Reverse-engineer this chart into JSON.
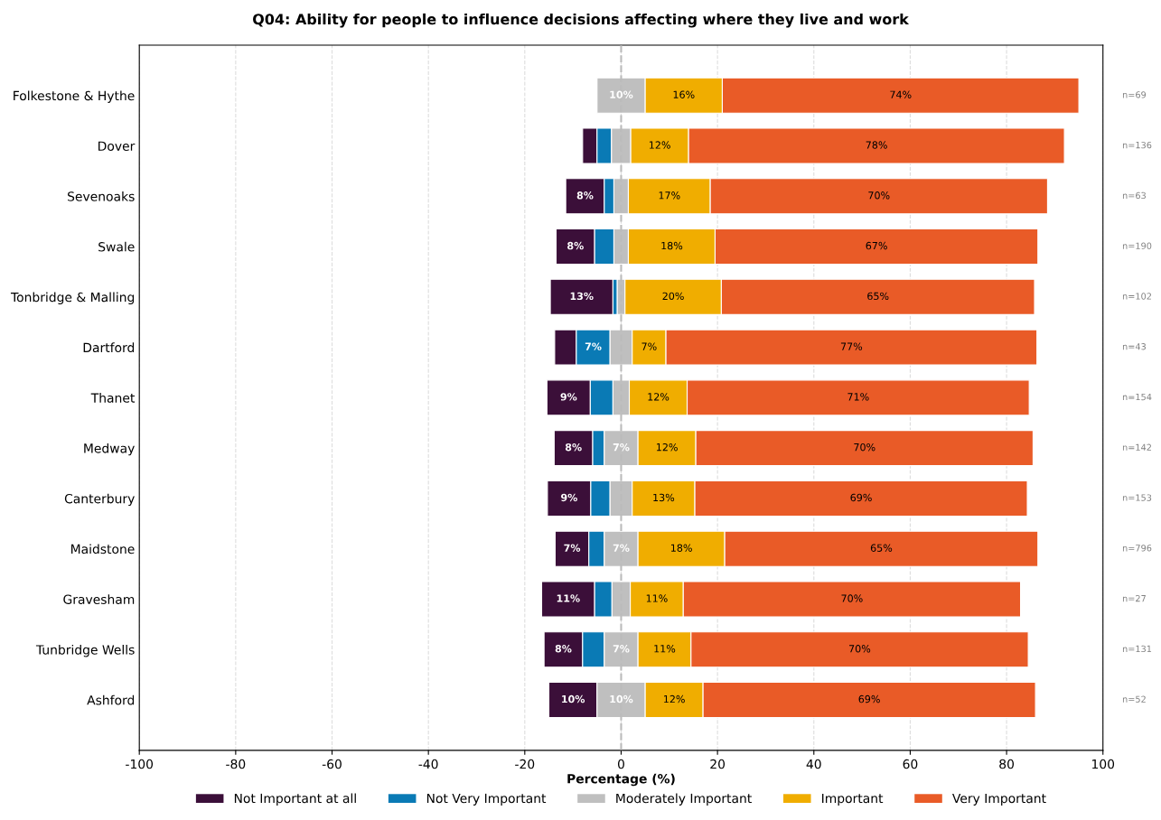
{
  "chart_data": {
    "type": "bar",
    "orientation": "horizontal",
    "title": "Q04: Ability for people to influence decisions affecting where they live and work",
    "xlabel": "Percentage (%)",
    "categories": [
      "Folkestone & Hythe",
      "Dover",
      "Sevenoaks",
      "Swale",
      "Tonbridge & Malling",
      "Dartford",
      "Thanet",
      "Medway",
      "Canterbury",
      "Maidstone",
      "Gravesham",
      "Tunbridge Wells",
      "Ashford"
    ],
    "series": [
      {
        "name": "Not Important at all",
        "color": "#3b0f39",
        "values": [
          null,
          3,
          8,
          8,
          13,
          4.5,
          9,
          8,
          9,
          7,
          11,
          8,
          10
        ],
        "base": [
          null,
          -8,
          -11.5,
          -13.5,
          -14.7,
          -13.8,
          -15.4,
          -13.9,
          -15.3,
          -13.7,
          -16.5,
          -16,
          -15
        ],
        "value_labels": [
          null,
          null,
          "8%",
          "8%",
          "13%",
          null,
          "9%",
          "8%",
          "9%",
          "7%",
          "11%",
          "8%",
          "10%"
        ]
      },
      {
        "name": "Not Very Important",
        "color": "#0a7ab5",
        "values": [
          null,
          3,
          2,
          4,
          0.9,
          7,
          4.7,
          2.4,
          4,
          3.2,
          3.6,
          4.5,
          null
        ],
        "base": [
          null,
          -5,
          -3.5,
          -5.5,
          -1.7,
          -9.3,
          -6.4,
          -5.9,
          -6.3,
          -6.7,
          -5.5,
          -8,
          null
        ],
        "value_labels": [
          null,
          null,
          null,
          null,
          null,
          "7%",
          null,
          null,
          null,
          null,
          null,
          null,
          null
        ]
      },
      {
        "name": "Moderately Important",
        "color": "#bfbfbf",
        "values": [
          10,
          4,
          3,
          3,
          1.6,
          4.6,
          3.4,
          7,
          4.6,
          7,
          3.8,
          7,
          10
        ],
        "base": [
          -5,
          -2,
          -1.5,
          -1.5,
          -0.8,
          -2.3,
          -1.7,
          -3.5,
          -2.3,
          -3.5,
          -1.9,
          -3.5,
          -5
        ],
        "value_labels": [
          "10%",
          null,
          null,
          null,
          null,
          null,
          null,
          "7%",
          null,
          "7%",
          null,
          "7%",
          "10%"
        ]
      },
      {
        "name": "Important",
        "color": "#f0ad00",
        "values": [
          16,
          12,
          17,
          18,
          20,
          7,
          12,
          12,
          13,
          18,
          11,
          11,
          12
        ],
        "base": [
          5,
          2,
          1.5,
          1.5,
          0.8,
          2.3,
          1.7,
          3.5,
          2.3,
          3.5,
          1.9,
          3.5,
          5
        ],
        "value_labels": [
          "16%",
          "12%",
          "17%",
          "18%",
          "20%",
          "7%",
          "12%",
          "12%",
          "13%",
          "18%",
          "11%",
          "11%",
          "12%"
        ]
      },
      {
        "name": "Very Important",
        "color": "#e95b27",
        "values": [
          74,
          78,
          70,
          67,
          65,
          77,
          71,
          70,
          69,
          65,
          70,
          70,
          69
        ],
        "base": [
          21,
          14,
          18.5,
          19.5,
          20.8,
          9.3,
          13.7,
          15.5,
          15.3,
          21.5,
          12.9,
          14.5,
          17
        ],
        "value_labels": [
          "74%",
          "78%",
          "70%",
          "67%",
          "65%",
          "77%",
          "71%",
          "70%",
          "69%",
          "65%",
          "70%",
          "70%",
          "69%"
        ]
      }
    ],
    "annotations": [
      "n=69",
      "n=136",
      "n=63",
      "n=190",
      "n=102",
      "n=43",
      "n=154",
      "n=142",
      "n=153",
      "n=796",
      "n=27",
      "n=131",
      "n=52"
    ],
    "xlim": [
      -100,
      100
    ],
    "xticks": [
      -100,
      -80,
      -60,
      -40,
      -20,
      0,
      20,
      40,
      60,
      80,
      100
    ],
    "ref_lines": [
      {
        "axis": "x",
        "value": 0,
        "color": "#bbbbbb",
        "line_style": "dashed"
      }
    ],
    "grid": "x",
    "legend": "bottom"
  }
}
